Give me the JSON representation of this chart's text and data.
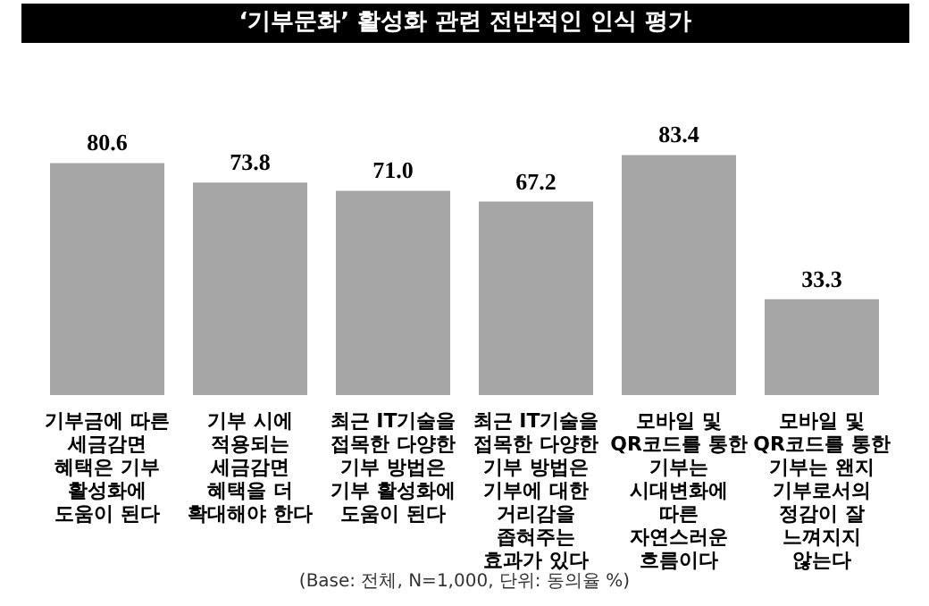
{
  "chart_data": {
    "type": "bar",
    "title": "‘기부문화’ 활성화 관련 전반적인 인식 평가",
    "categories": [
      "기부금에 따른 세금감면 혜택은 기부 활성화에 도움이 된다",
      "기부 시에 적용되는 세금감면 혜택을 더 확대해야 한다",
      "최근 IT기술을 접목한 다양한 기부 방법은 기부 활성화에 도움이 된다",
      "최근 IT기술을 접목한 다양한 기부 방법은 기부에 대한 거리감을 좁혀주는 효과가 있다",
      "모바일 및 QR코드를 통한 기부는 시대변화에 따른 자연스러운 흐름이다",
      "모바일 및 QR코드를 통한 기부는 왠지 기부로서의 정감이 잘 느껴지지 않는다"
    ],
    "values": [
      80.6,
      73.8,
      71.0,
      67.2,
      83.4,
      33.3
    ],
    "color": "#a6a6a6",
    "value_labels": [
      "80.6",
      "73.8",
      "71.0",
      "67.2",
      "83.4",
      "33.3"
    ],
    "annotations": [
      "(Base: 전체, N=1,000, 단위: 동의율 %)"
    ]
  }
}
